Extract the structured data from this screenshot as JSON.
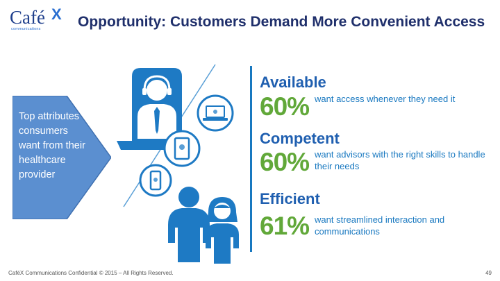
{
  "logo": {
    "word": "Café",
    "x": "X",
    "sub": "communications"
  },
  "title": "Opportunity: Customers Demand More Convenient Access",
  "callout": {
    "text": "Top attributes consumers want from their healthcare provider"
  },
  "items": [
    {
      "heading": "Available",
      "percent": "60%",
      "description": "want access whenever they need it"
    },
    {
      "heading": "Competent",
      "percent": "60%",
      "description": "want advisors with the right skills to handle their needs"
    },
    {
      "heading": "Efficient",
      "percent": "61%",
      "description": "want streamlined interaction and communications"
    }
  ],
  "footer": {
    "confidential": "CaféX Communications Confidential © 2015 – All Rights Reserved.",
    "page": "49"
  },
  "colors": {
    "title": "#1f2f6b",
    "accent_blue": "#1878c0",
    "accent_green": "#61a839",
    "callout": "#5b8fd0"
  },
  "icons": [
    "agent-headset-icon",
    "laptop-icon",
    "tablet-icon",
    "smartphone-icon",
    "customer-man-icon",
    "customer-woman-icon"
  ]
}
